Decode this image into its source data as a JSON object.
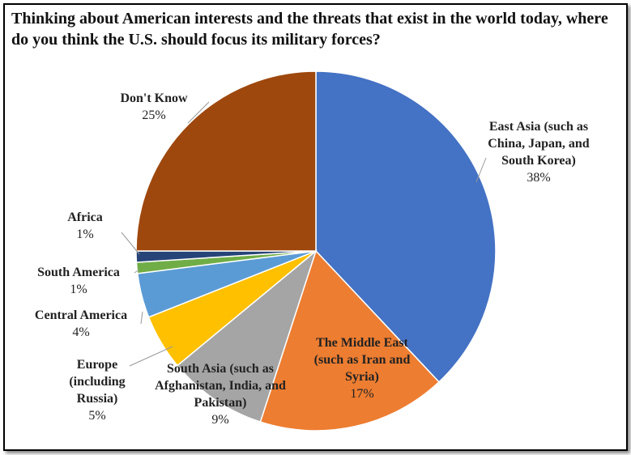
{
  "chart_data": {
    "type": "pie",
    "title": "Thinking about American interests and the threats that exist in the world today, where do you think the U.S. should focus its military forces?",
    "categories": [
      "East Asia (such as China, Japan, and South Korea)",
      "The Middle East (such as Iran and Syria)",
      "South Asia (such as Afghanistan, India, and Pakistan)",
      "Europe (including Russia)",
      "Central America",
      "South America",
      "Africa",
      "Don't Know"
    ],
    "values": [
      38,
      17,
      9,
      5,
      4,
      1,
      1,
      25
    ],
    "value_labels": [
      "38%",
      "17%",
      "9%",
      "5%",
      "4%",
      "1%",
      "1%",
      "25%"
    ],
    "colors": [
      "#4472c4",
      "#ed7d31",
      "#a5a5a5",
      "#ffc000",
      "#5b9bd5",
      "#70ad47",
      "#264478",
      "#9e480e"
    ]
  }
}
